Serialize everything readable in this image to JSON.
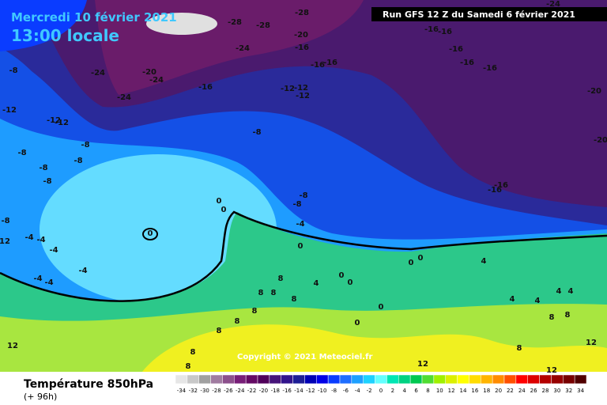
{
  "header": {
    "date": "Mercredi 10 février 2021",
    "time": "13:00 locale",
    "run": "Run GFS 12 Z du Samedi 6 février 2021"
  },
  "copyright": "Copyright © 2021 Meteociel.fr",
  "footer": {
    "title": "Température 850hPa",
    "lead": "(+ 96h)"
  },
  "contour_labels": [
    -28,
    -28,
    -28,
    -24,
    -16,
    -16,
    -20,
    -16,
    -24,
    -16,
    -16,
    -16,
    -16,
    -16,
    -8,
    -24,
    -20,
    -24,
    -16,
    -12,
    -12,
    -12,
    -20,
    -24,
    -12,
    -12,
    -12,
    -8,
    -20,
    -8,
    -8,
    -8,
    -8,
    -8,
    -16,
    -16,
    -8,
    -8,
    0,
    0,
    -8,
    -4,
    -4,
    -4,
    12,
    -4,
    0,
    0,
    -4,
    -4,
    -4,
    0,
    0,
    8,
    4,
    0,
    0,
    8,
    8,
    8,
    8,
    8,
    8,
    8,
    8,
    12,
    12,
    12,
    12,
    8,
    8,
    8,
    4,
    4,
    4,
    4,
    4,
    0,
    0
  ],
  "colorbar": {
    "ticks": [
      -34,
      -32,
      -30,
      -28,
      -26,
      -24,
      -22,
      -20,
      -18,
      -16,
      -14,
      -12,
      -10,
      -8,
      -6,
      -4,
      -2,
      0,
      2,
      4,
      6,
      8,
      10,
      12,
      14,
      16,
      18,
      20,
      22,
      24,
      26,
      28,
      30,
      32,
      34
    ],
    "colors": [
      "#e6e6e6",
      "#c8c8c8",
      "#a0a0a0",
      "#a07ca0",
      "#8c508c",
      "#781e78",
      "#640a64",
      "#50005a",
      "#46147a",
      "#32148c",
      "#1e1e96",
      "#0000b4",
      "#0000e6",
      "#0a3cff",
      "#1e6eff",
      "#1ea0ff",
      "#1ed2ff",
      "#64ffff",
      "#00e6b4",
      "#00d282",
      "#00c850",
      "#50dc32",
      "#a0f000",
      "#dcf000",
      "#ffff00",
      "#ffdc00",
      "#ffb400",
      "#ff8c00",
      "#ff5000",
      "#ff0000",
      "#dc0000",
      "#b40000",
      "#960000",
      "#780000",
      "#500000"
    ]
  }
}
